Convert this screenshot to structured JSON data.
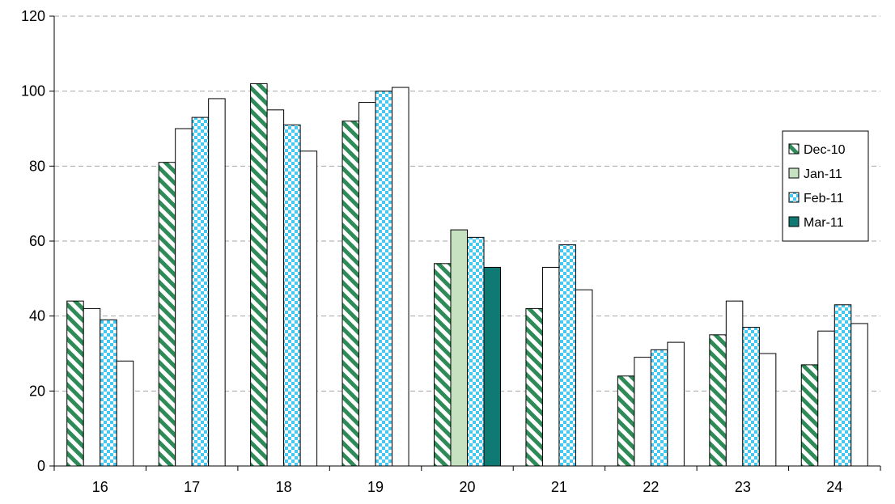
{
  "chart_data": {
    "type": "bar",
    "title": "",
    "xlabel": "",
    "ylabel": "",
    "ylim": [
      0,
      120
    ],
    "yticks": [
      "0",
      "20",
      "40",
      "60",
      "80",
      "100",
      "120"
    ],
    "grid": "horizontal dashed",
    "legend_position": "top-right",
    "categories": [
      "16",
      "17",
      "18",
      "19",
      "20",
      "21",
      "22",
      "23",
      "24"
    ],
    "series": [
      {
        "name": "Dec-10",
        "pattern": "diagonal-stripes",
        "colors": [
          "#2e8b57",
          "#ffffff"
        ],
        "values": [
          44,
          81,
          102,
          92,
          54,
          42,
          24,
          35,
          27
        ]
      },
      {
        "name": "Jan-11",
        "pattern": "solid",
        "colors": [
          "#ffffff"
        ],
        "values": [
          42,
          90,
          95,
          97,
          63,
          53,
          29,
          44,
          36
        ],
        "highlight_category": "20",
        "highlight_color": "#c6e2c0"
      },
      {
        "name": "Feb-11",
        "pattern": "checkerboard",
        "colors": [
          "#45c8f0",
          "#ffffff"
        ],
        "values": [
          39,
          93,
          91,
          100,
          61,
          59,
          31,
          37,
          43
        ]
      },
      {
        "name": "Mar-11",
        "pattern": "solid",
        "colors": [
          "#ffffff"
        ],
        "values": [
          28,
          98,
          84,
          101,
          53,
          47,
          33,
          30,
          38
        ],
        "highlight_category": "20",
        "highlight_color": "#0f7a74"
      }
    ]
  }
}
